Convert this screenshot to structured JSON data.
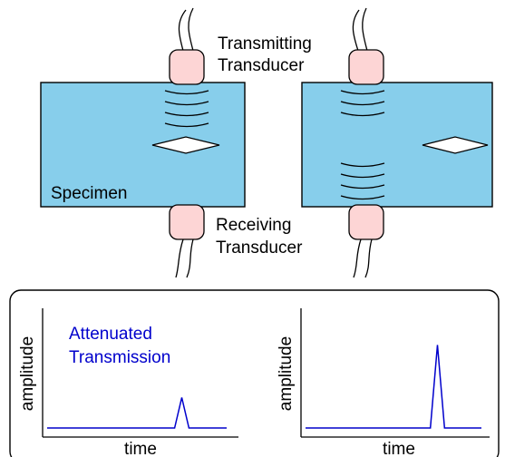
{
  "labels": {
    "transmitting_line1": "Transmitting",
    "transmitting_line2": "Transducer",
    "receiving_line1": "Receiving",
    "receiving_line2": "Transducer",
    "specimen": "Specimen"
  },
  "plots": [
    {
      "ylabel": "amplitude",
      "xlabel": "time",
      "annotation_line1": "Attenuated",
      "annotation_line2": "Transmission"
    },
    {
      "ylabel": "amplitude",
      "xlabel": "time"
    }
  ],
  "colors": {
    "specimen_fill": "#87ceeb",
    "transducer_fill": "#fdd5d5",
    "signal": "#0000cc"
  },
  "chart_data": [
    {
      "type": "line",
      "signal": "attenuated",
      "x": [
        0,
        0.71,
        0.75,
        0.79,
        1
      ],
      "y": [
        0,
        0,
        0.29,
        0,
        0
      ]
    },
    {
      "type": "line",
      "signal": "full",
      "x": [
        0,
        0.71,
        0.75,
        0.79,
        1
      ],
      "y": [
        0,
        0,
        0.79,
        0,
        0
      ]
    }
  ]
}
